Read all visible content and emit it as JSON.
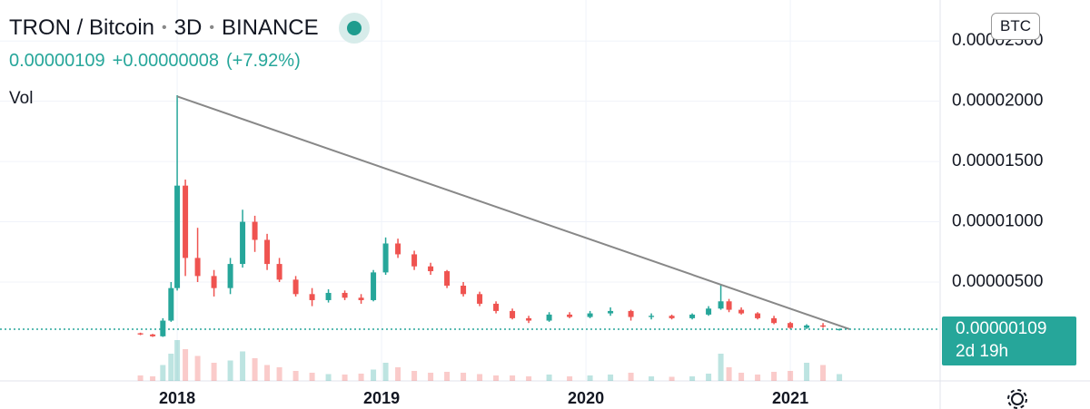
{
  "header": {
    "symbol": "TRON / Bitcoin",
    "interval": "3D",
    "exchange": "BINANCE",
    "price": "0.00000109",
    "change": "+0.00000008",
    "change_percent": "(+7.92%)",
    "volume_label": "Vol",
    "currency": "BTC"
  },
  "chart_data": {
    "type": "candlestick",
    "xlim": [
      2017.133,
      2021.733
    ],
    "xticks": [
      2018,
      2019,
      2020,
      2021
    ],
    "ylim": [
      -3.2e-06,
      2.84e-05
    ],
    "yticks": [
      {
        "value": 5e-06,
        "label": "0.00000500"
      },
      {
        "value": 1e-05,
        "label": "0.00001000"
      },
      {
        "value": 1.5e-05,
        "label": "0.00001500"
      },
      {
        "value": 2e-05,
        "label": "0.00002000"
      },
      {
        "value": 2.5e-05,
        "label": "0.00002500"
      }
    ],
    "grid": true,
    "up_color": "#26a69a",
    "down_color": "#ef5350",
    "candles": {
      "x": [
        2017.82,
        2017.88,
        2017.93,
        2017.97,
        2018.0,
        2018.04,
        2018.1,
        2018.18,
        2018.26,
        2018.32,
        2018.38,
        2018.44,
        2018.5,
        2018.58,
        2018.66,
        2018.74,
        2018.82,
        2018.9,
        2018.96,
        2019.02,
        2019.08,
        2019.16,
        2019.24,
        2019.32,
        2019.4,
        2019.48,
        2019.56,
        2019.64,
        2019.72,
        2019.82,
        2019.92,
        2020.02,
        2020.12,
        2020.22,
        2020.32,
        2020.42,
        2020.52,
        2020.6,
        2020.66,
        2020.7,
        2020.76,
        2020.84,
        2020.92,
        2021.0,
        2021.08,
        2021.16,
        2021.24
      ],
      "open": [
        7.5e-07,
        6.5e-07,
        5e-07,
        1.8e-06,
        4.5e-06,
        1.3e-05,
        7e-06,
        5.5e-06,
        4.5e-06,
        6.5e-06,
        1e-05,
        8.5e-06,
        6.5e-06,
        5.2e-06,
        4e-06,
        3.5e-06,
        4.1e-06,
        3.7e-06,
        3.5e-06,
        5.8e-06,
        8.2e-06,
        7.3e-06,
        6.3e-06,
        5.9e-06,
        4.7e-06,
        4e-06,
        3.2e-06,
        2.6e-06,
        2e-06,
        1.8e-06,
        2.3e-06,
        2.1e-06,
        2.4e-06,
        2.6e-06,
        2.1e-06,
        2.2e-06,
        2e-06,
        2.3e-06,
        2.8e-06,
        3.4e-06,
        2.7e-06,
        2.4e-06,
        2e-06,
        1.6e-06,
        1.2e-06,
        1.4e-06,
        1.01e-06
      ],
      "high": [
        8e-07,
        7e-07,
        2e-06,
        5e-06,
        2.05e-05,
        1.35e-05,
        9.5e-06,
        6e-06,
        7e-06,
        1.1e-05,
        1.05e-05,
        9e-06,
        7e-06,
        5.5e-06,
        4.5e-06,
        4.4e-06,
        4.3e-06,
        4e-06,
        6e-06,
        8.7e-06,
        8.6e-06,
        7.6e-06,
        6.6e-06,
        6e-06,
        5e-06,
        4.2e-06,
        3.4e-06,
        2.8e-06,
        2.2e-06,
        2.5e-06,
        2.5e-06,
        2.6e-06,
        2.9e-06,
        2.7e-06,
        2.4e-06,
        2.3e-06,
        2.4e-06,
        3e-06,
        4.8e-06,
        3.6e-06,
        2.9e-06,
        2.5e-06,
        2.2e-06,
        1.7e-06,
        1.5e-06,
        1.6e-06,
        1.15e-06
      ],
      "low": [
        6e-07,
        4.5e-07,
        4.5e-07,
        1.7e-06,
        4.3e-06,
        5.5e-06,
        5e-06,
        3.8e-06,
        4e-06,
        6.2e-06,
        7.5e-06,
        6e-06,
        5e-06,
        3.8e-06,
        3e-06,
        3.3e-06,
        3.5e-06,
        3.2e-06,
        3.4e-06,
        5.6e-06,
        7e-06,
        6e-06,
        5.6e-06,
        4.5e-06,
        3.8e-06,
        3e-06,
        2.4e-06,
        1.9e-06,
        1.6e-06,
        1.7e-06,
        2e-06,
        2e-06,
        2.2e-06,
        1.8e-06,
        1.9e-06,
        1.9e-06,
        1.9e-06,
        2.2e-06,
        2.7e-06,
        2.5e-06,
        2.3e-06,
        1.9e-06,
        1.5e-06,
        1.1e-06,
        1.1e-06,
        1.2e-06,
        9.8e-07
      ],
      "close": [
        6.5e-07,
        5e-07,
        1.8e-06,
        4.5e-06,
        1.3e-05,
        7e-06,
        5.5e-06,
        4.5e-06,
        6.5e-06,
        1e-05,
        8.5e-06,
        6.5e-06,
        5.2e-06,
        4e-06,
        3.5e-06,
        4.1e-06,
        3.7e-06,
        3.5e-06,
        5.8e-06,
        8.2e-06,
        7.3e-06,
        6.3e-06,
        5.9e-06,
        4.7e-06,
        4e-06,
        3.2e-06,
        2.6e-06,
        2e-06,
        1.8e-06,
        2.3e-06,
        2.1e-06,
        2.4e-06,
        2.6e-06,
        2.1e-06,
        2.2e-06,
        2e-06,
        2.3e-06,
        2.8e-06,
        3.4e-06,
        2.7e-06,
        2.4e-06,
        2e-06,
        1.6e-06,
        1.2e-06,
        1.4e-06,
        1.3e-06,
        1.09e-06
      ]
    },
    "volume": [
      12,
      10,
      35,
      60,
      90,
      70,
      55,
      40,
      45,
      65,
      50,
      35,
      30,
      22,
      18,
      15,
      14,
      16,
      25,
      40,
      30,
      22,
      18,
      20,
      18,
      15,
      12,
      12,
      10,
      14,
      10,
      12,
      14,
      18,
      10,
      9,
      10,
      16,
      60,
      30,
      18,
      14,
      20,
      22,
      40,
      35,
      15
    ],
    "trendline": {
      "x": [
        2018.0,
        2021.29
      ],
      "y": [
        2.04e-05,
        1.09e-06
      ],
      "color": "#888888"
    },
    "last_price": {
      "value": 1.09e-06,
      "label": "0.00000109",
      "countdown": "2d 19h",
      "color": "#26a69a"
    }
  }
}
